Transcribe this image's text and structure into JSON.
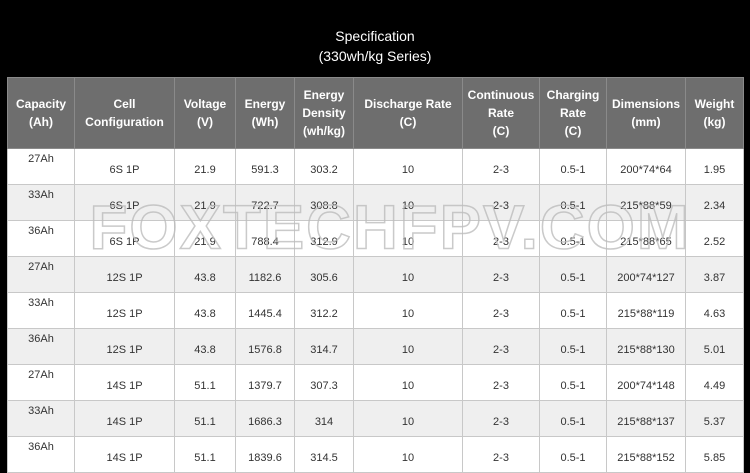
{
  "title": "Specification",
  "subtitle": "(330wh/kg Series)",
  "watermark": "FOXTECHFPV.COM",
  "table": {
    "header": [
      "Capacity\n(Ah)",
      "Cell\nConfiguration",
      "Voltage\n(V)",
      "Energy\n(Wh)",
      "Energy\nDensity\n(wh/kg)",
      "Discharge Rate\n(C)",
      "Continuous\nRate\n(C)",
      "Charging\nRate\n(C)",
      "Dimensions\n(mm)",
      "Weight\n(kg)"
    ],
    "rows": [
      [
        "27Ah",
        "6S 1P",
        "21.9",
        "591.3",
        "303.2",
        "10",
        "2-3",
        "0.5-1",
        "200*74*64",
        "1.95"
      ],
      [
        "33Ah",
        "6S 1P",
        "21.9",
        "722.7",
        "308.8",
        "10",
        "2-3",
        "0.5-1",
        "215*88*59",
        "2.34"
      ],
      [
        "36Ah",
        "6S 1P",
        "21.9",
        "788.4",
        "312.9",
        "10",
        "2-3",
        "0.5-1",
        "215*88*65",
        "2.52"
      ],
      [
        "27Ah",
        "12S 1P",
        "43.8",
        "1182.6",
        "305.6",
        "10",
        "2-3",
        "0.5-1",
        "200*74*127",
        "3.87"
      ],
      [
        "33Ah",
        "12S 1P",
        "43.8",
        "1445.4",
        "312.2",
        "10",
        "2-3",
        "0.5-1",
        "215*88*119",
        "4.63"
      ],
      [
        "36Ah",
        "12S 1P",
        "43.8",
        "1576.8",
        "314.7",
        "10",
        "2-3",
        "0.5-1",
        "215*88*130",
        "5.01"
      ],
      [
        "27Ah",
        "14S 1P",
        "51.1",
        "1379.7",
        "307.3",
        "10",
        "2-3",
        "0.5-1",
        "200*74*148",
        "4.49"
      ],
      [
        "33Ah",
        "14S 1P",
        "51.1",
        "1686.3",
        "314",
        "10",
        "2-3",
        "0.5-1",
        "215*88*137",
        "5.37"
      ],
      [
        "36Ah",
        "14S 1P",
        "51.1",
        "1839.6",
        "314.5",
        "10",
        "2-3",
        "0.5-1",
        "215*88*152",
        "5.85"
      ]
    ]
  }
}
